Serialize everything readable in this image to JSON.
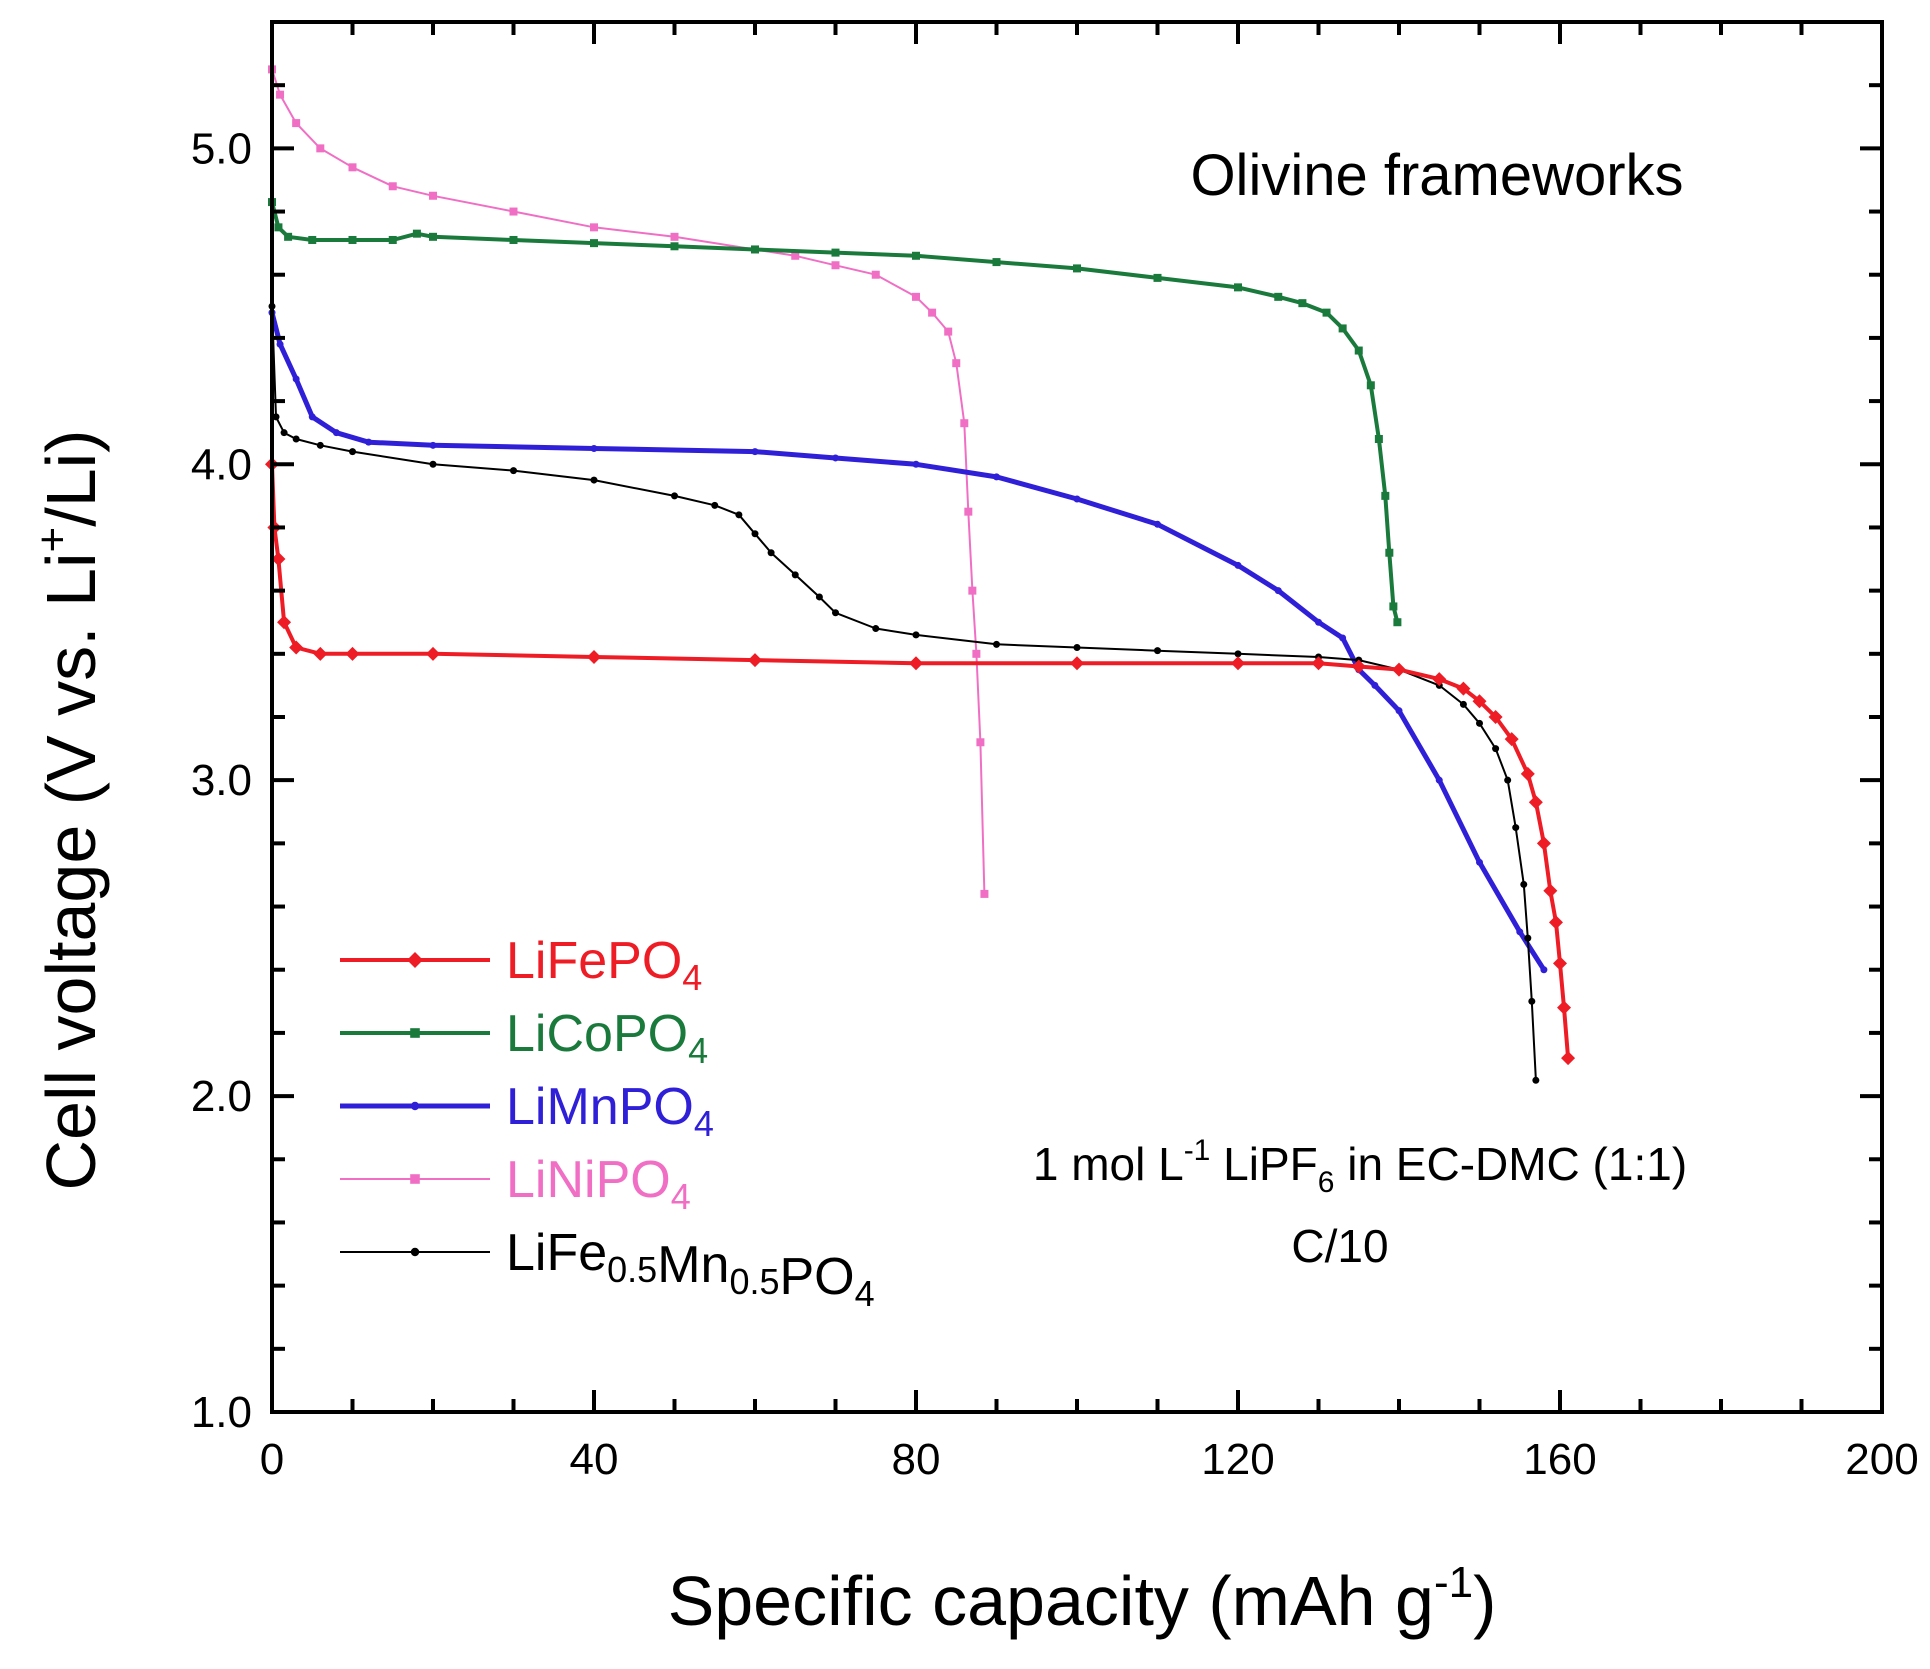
{
  "chart_data": {
    "type": "line",
    "title": "",
    "xlabel": "Specific capacity (mAh g",
    "xlabel_sup": "-1",
    "xlabel_end": ")",
    "ylabel": "Cell voltage (V vs. Li",
    "ylabel_sup": "+",
    "ylabel_end": "/Li)",
    "xlim": [
      0,
      200
    ],
    "ylim": [
      1.0,
      5.4
    ],
    "xticks": [
      0,
      40,
      80,
      120,
      160,
      200
    ],
    "xtick_labels": [
      "0",
      "40",
      "80",
      "120",
      "160",
      "200"
    ],
    "yticks": [
      1.0,
      2.0,
      3.0,
      4.0,
      5.0
    ],
    "ytick_labels": [
      "1.0",
      "2.0",
      "3.0",
      "4.0",
      "5.0"
    ],
    "grid": false,
    "legend_position": "bottom-left",
    "annotations": {
      "title": "Olivine frameworks",
      "electrolyte_a": "1 mol L",
      "electrolyte_sup": "-1",
      "electrolyte_b": " LiPF",
      "electrolyte_sub": "6",
      "electrolyte_c": " in EC-DMC (1:1)",
      "rate": "C/10"
    },
    "series": [
      {
        "name": "LiFePO4",
        "label_parts": [
          [
            "LiFePO",
            ""
          ],
          [
            "4",
            "sub"
          ]
        ],
        "color": "#ee1c25",
        "marker": "diamond",
        "stroke_width": 4,
        "x": [
          0,
          0.3,
          0.8,
          1.5,
          3,
          6,
          10,
          20,
          40,
          60,
          80,
          100,
          120,
          130,
          135,
          140,
          145,
          148,
          150,
          152,
          154,
          156,
          157,
          158,
          158.8,
          159.5,
          160,
          160.5,
          161
        ],
        "y": [
          4.0,
          3.8,
          3.7,
          3.5,
          3.42,
          3.4,
          3.4,
          3.4,
          3.39,
          3.38,
          3.37,
          3.37,
          3.37,
          3.37,
          3.36,
          3.35,
          3.32,
          3.29,
          3.25,
          3.2,
          3.13,
          3.02,
          2.93,
          2.8,
          2.65,
          2.55,
          2.42,
          2.28,
          2.12
        ]
      },
      {
        "name": "LiCoPO4",
        "label_parts": [
          [
            "LiCoPO",
            ""
          ],
          [
            "4",
            "sub"
          ]
        ],
        "color": "#1a7a3c",
        "marker": "square",
        "stroke_width": 4,
        "x": [
          0,
          0.8,
          2,
          5,
          10,
          15,
          18,
          20,
          30,
          40,
          50,
          60,
          70,
          80,
          90,
          100,
          110,
          120,
          125,
          128,
          131,
          133,
          135,
          136.5,
          137.5,
          138.3,
          138.8,
          139.3,
          139.8
        ],
        "y": [
          4.83,
          4.75,
          4.72,
          4.71,
          4.71,
          4.71,
          4.73,
          4.72,
          4.71,
          4.7,
          4.69,
          4.68,
          4.67,
          4.66,
          4.64,
          4.62,
          4.59,
          4.56,
          4.53,
          4.51,
          4.48,
          4.43,
          4.36,
          4.25,
          4.08,
          3.9,
          3.72,
          3.55,
          3.5
        ]
      },
      {
        "name": "LiMnPO4",
        "label_parts": [
          [
            "LiMnPO",
            ""
          ],
          [
            "4",
            "sub"
          ]
        ],
        "color": "#2f20d8",
        "marker": "dot",
        "stroke_width": 5,
        "x": [
          0,
          1,
          3,
          5,
          8,
          12,
          20,
          40,
          60,
          70,
          80,
          90,
          100,
          110,
          120,
          125,
          130,
          133,
          135,
          137,
          140,
          145,
          150,
          155,
          158
        ],
        "y": [
          4.48,
          4.38,
          4.27,
          4.15,
          4.1,
          4.07,
          4.06,
          4.05,
          4.04,
          4.02,
          4.0,
          3.96,
          3.89,
          3.81,
          3.68,
          3.6,
          3.5,
          3.45,
          3.35,
          3.3,
          3.22,
          3.0,
          2.74,
          2.52,
          2.4
        ]
      },
      {
        "name": "LiNiPO4",
        "label_parts": [
          [
            "LiNiPO",
            ""
          ],
          [
            "4",
            "sub"
          ]
        ],
        "color": "#f06fc5",
        "marker": "square",
        "stroke_width": 2,
        "x": [
          0,
          1,
          3,
          6,
          10,
          15,
          20,
          30,
          40,
          50,
          60,
          65,
          70,
          75,
          80,
          82,
          84,
          85,
          86,
          86.5,
          87,
          87.5,
          88,
          88.5
        ],
        "y": [
          5.25,
          5.17,
          5.08,
          5.0,
          4.94,
          4.88,
          4.85,
          4.8,
          4.75,
          4.72,
          4.68,
          4.66,
          4.63,
          4.6,
          4.53,
          4.48,
          4.42,
          4.32,
          4.13,
          3.85,
          3.6,
          3.4,
          3.12,
          2.64
        ]
      },
      {
        "name": "LiFe0.5Mn0.5PO4",
        "label_parts": [
          [
            "LiFe",
            ""
          ],
          [
            "0.5",
            "sub"
          ],
          [
            "Mn",
            ""
          ],
          [
            "0.5",
            "sub"
          ],
          [
            "PO",
            ""
          ],
          [
            "4",
            "sub"
          ]
        ],
        "color": "#000000",
        "marker": "dot",
        "stroke_width": 2,
        "x": [
          0,
          0.5,
          1.5,
          3,
          6,
          10,
          20,
          30,
          40,
          50,
          55,
          58,
          60,
          62,
          65,
          68,
          70,
          75,
          80,
          90,
          100,
          110,
          120,
          130,
          135,
          140,
          145,
          148,
          150,
          152,
          153.5,
          154.5,
          155.5,
          156,
          156.5,
          157
        ],
        "y": [
          4.5,
          4.15,
          4.1,
          4.08,
          4.06,
          4.04,
          4.0,
          3.98,
          3.95,
          3.9,
          3.87,
          3.84,
          3.78,
          3.72,
          3.65,
          3.58,
          3.53,
          3.48,
          3.46,
          3.43,
          3.42,
          3.41,
          3.4,
          3.39,
          3.38,
          3.35,
          3.3,
          3.24,
          3.18,
          3.1,
          3.0,
          2.85,
          2.67,
          2.5,
          2.3,
          2.05
        ]
      }
    ]
  }
}
